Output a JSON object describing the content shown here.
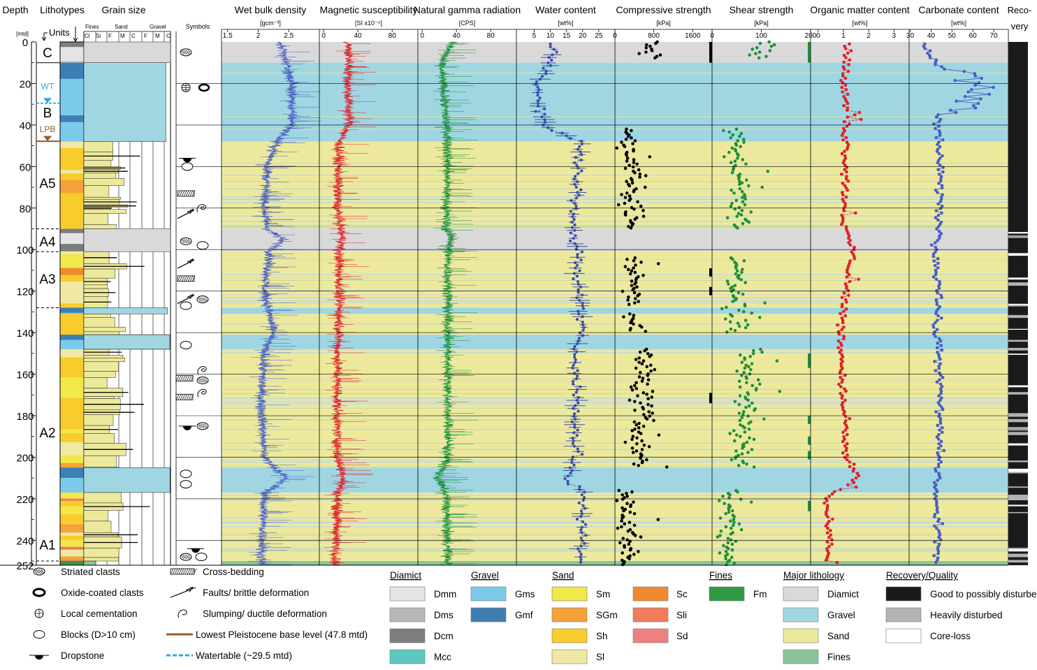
{
  "colors": {
    "diamict_band": "#d9d9d9",
    "gravel_band": "#9fd6e2",
    "sand_band": "#ede99c",
    "fines_band": "#8cc39a",
    "wet_bulk_density": "#4a5fc1",
    "magnetic_susceptibility": "#e0202a",
    "natural_gamma": "#1e8f3a",
    "water_content": "#3a4ea8",
    "compressive_strength": "#000000",
    "shear_strength": "#1e8f3a",
    "organic_matter": "#e0202a",
    "carbonate": "#4a5fc1",
    "watertable": "#2aa9e0",
    "pleistocene_base": "#9a5a2a",
    "Dmm": "#e4e4e4",
    "Dms": "#b7b7b7",
    "Dcm": "#7d7d7d",
    "Mcc": "#5ec8c0",
    "Gms": "#7ccbea",
    "Gmf": "#3d7fb3",
    "Sm": "#f2e84a",
    "SGm": "#f5a23a",
    "Sh": "#f7cc2c",
    "Sl": "#efe9a5",
    "Sc": "#ef8a2f",
    "Sli": "#f27b5b",
    "Sd": "#f08080",
    "Fm": "#2f9a45",
    "Good": "#1a1a1a",
    "Heavily": "#b3b3b3",
    "Core_loss": "#ffffff"
  },
  "header": {
    "depth": "Depth",
    "depth_unit": "[mtd]",
    "lithotypes": "Lithotypes",
    "units": "Units",
    "grain_size": "Grain size",
    "fines": "Fines",
    "sand": "Sand",
    "gravel": "Gravel",
    "cl": "Cl",
    "si": "Si",
    "f": "F",
    "m": "M",
    "c": "C",
    "symbols": "Symbols",
    "recovery_1": "Reco-",
    "recovery_2": "very"
  },
  "units": [
    {
      "label": "C",
      "depth": 5
    },
    {
      "label": "B",
      "depth": 34
    },
    {
      "label": "A5",
      "depth": 68
    },
    {
      "label": "A4",
      "depth": 96
    },
    {
      "label": "A3",
      "depth": 114
    },
    {
      "label": "A2",
      "depth": 188
    },
    {
      "label": "A1",
      "depth": 242
    }
  ],
  "markers": {
    "wt": "WT",
    "lpb": "LPB"
  },
  "chart_data": {
    "type": "line",
    "depth_axis": {
      "label": "Depth",
      "unit": "[mtd]",
      "range": [
        0,
        252
      ],
      "ticks": [
        0,
        20,
        40,
        60,
        80,
        100,
        120,
        140,
        160,
        180,
        200,
        220,
        240,
        252
      ]
    },
    "lithology_bands": [
      {
        "from": 0,
        "to": 10,
        "type": "Diamict"
      },
      {
        "from": 10,
        "to": 48,
        "type": "Gravel"
      },
      {
        "from": 48,
        "to": 90,
        "type": "Sand"
      },
      {
        "from": 90,
        "to": 101,
        "type": "Diamict"
      },
      {
        "from": 101,
        "to": 128,
        "type": "Sand"
      },
      {
        "from": 128,
        "to": 131,
        "type": "Gravel"
      },
      {
        "from": 131,
        "to": 141,
        "type": "Sand"
      },
      {
        "from": 141,
        "to": 148,
        "type": "Gravel"
      },
      {
        "from": 148,
        "to": 205,
        "type": "Sand"
      },
      {
        "from": 205,
        "to": 217,
        "type": "Gravel"
      },
      {
        "from": 217,
        "to": 250,
        "type": "Sand"
      },
      {
        "from": 250,
        "to": 252,
        "type": "Fines"
      }
    ],
    "panels": [
      {
        "name": "Wet bulk density",
        "unit": "[gcm⁻³]",
        "ticks": [
          "1.5",
          "2",
          "2.5"
        ],
        "tick_values": [
          1.5,
          2.0,
          2.5
        ],
        "range": [
          1.4,
          3.0
        ],
        "style": "dense",
        "profile": [
          [
            0,
            2.35
          ],
          [
            10,
            2.45
          ],
          [
            20,
            2.55
          ],
          [
            40,
            2.55
          ],
          [
            48,
            2.3
          ],
          [
            60,
            2.15
          ],
          [
            80,
            2.1
          ],
          [
            90,
            2.15
          ],
          [
            95,
            2.4
          ],
          [
            101,
            2.2
          ],
          [
            120,
            2.1
          ],
          [
            140,
            2.25
          ],
          [
            148,
            2.1
          ],
          [
            170,
            2.05
          ],
          [
            200,
            2.1
          ],
          [
            210,
            2.45
          ],
          [
            218,
            2.1
          ],
          [
            252,
            2.05
          ]
        ]
      },
      {
        "name": "Magnetic susceptibility",
        "unit": "[SI x10⁻⁵]",
        "ticks": [
          "0",
          "40",
          "80"
        ],
        "tick_values": [
          0,
          40,
          80
        ],
        "range": [
          -5,
          110
        ],
        "style": "dense",
        "profile": [
          [
            0,
            28
          ],
          [
            10,
            30
          ],
          [
            20,
            28
          ],
          [
            40,
            30
          ],
          [
            48,
            18
          ],
          [
            80,
            16
          ],
          [
            95,
            22
          ],
          [
            101,
            18
          ],
          [
            140,
            18
          ],
          [
            148,
            16
          ],
          [
            200,
            16
          ],
          [
            210,
            24
          ],
          [
            218,
            16
          ],
          [
            252,
            14
          ]
        ]
      },
      {
        "name": "Natural gamma radiation",
        "unit": "[CPS]",
        "ticks": [
          "0",
          "40",
          "80"
        ],
        "tick_values": [
          0,
          40,
          80
        ],
        "range": [
          -5,
          110
        ],
        "style": "dense",
        "profile": [
          [
            0,
            35
          ],
          [
            10,
            22
          ],
          [
            48,
            30
          ],
          [
            90,
            28
          ],
          [
            95,
            35
          ],
          [
            101,
            30
          ],
          [
            140,
            30
          ],
          [
            148,
            30
          ],
          [
            200,
            30
          ],
          [
            210,
            18
          ],
          [
            218,
            28
          ],
          [
            252,
            30
          ]
        ]
      },
      {
        "name": "Water content",
        "unit": "[wt%]",
        "ticks": [
          "5",
          "10",
          "15",
          "20",
          "25"
        ],
        "tick_values": [
          5,
          10,
          15,
          20,
          25
        ],
        "range": [
          -0.5,
          30
        ],
        "style": "errbar",
        "profile": [
          [
            0,
            11
          ],
          [
            10,
            10
          ],
          [
            20,
            6
          ],
          [
            30,
            7
          ],
          [
            40,
            8
          ],
          [
            48,
            19
          ],
          [
            80,
            18
          ],
          [
            95,
            17
          ],
          [
            101,
            18
          ],
          [
            140,
            20
          ],
          [
            148,
            18
          ],
          [
            200,
            18
          ],
          [
            210,
            15
          ],
          [
            218,
            20
          ],
          [
            252,
            20
          ]
        ]
      },
      {
        "name": "Compressive strength",
        "unit": "[kPa]",
        "ticks": [
          "0",
          "800",
          "1600"
        ],
        "tick_values": [
          0,
          800,
          1600
        ],
        "range": [
          0,
          2000
        ],
        "style": "dots",
        "profile": [
          [
            0,
            700
          ],
          [
            10,
            700
          ],
          [
            42,
            300
          ],
          [
            90,
            300
          ],
          [
            104,
            400
          ],
          [
            140,
            400
          ],
          [
            148,
            600
          ],
          [
            205,
            500
          ],
          [
            216,
            250
          ],
          [
            252,
            300
          ]
        ]
      },
      {
        "name": "Shear strength",
        "unit": "[kPa]",
        "ticks": [
          "0",
          "100",
          "200"
        ],
        "tick_values": [
          0,
          100,
          200
        ],
        "range": [
          0,
          200
        ],
        "style": "dots",
        "profile": [
          [
            0,
            100
          ],
          [
            10,
            100
          ],
          [
            42,
            50
          ],
          [
            90,
            60
          ],
          [
            104,
            50
          ],
          [
            140,
            45
          ],
          [
            148,
            80
          ],
          [
            205,
            55
          ],
          [
            216,
            30
          ],
          [
            252,
            40
          ]
        ]
      },
      {
        "name": "Organic matter content",
        "unit": "[wt%]",
        "ticks": [
          "0",
          "1",
          "2",
          "3"
        ],
        "tick_values": [
          0,
          1,
          2,
          3
        ],
        "range": [
          -0.3,
          3.6
        ],
        "style": "linedots",
        "profile": [
          [
            0,
            1.2
          ],
          [
            20,
            1.0
          ],
          [
            40,
            1.1
          ],
          [
            60,
            1.1
          ],
          [
            90,
            1.0
          ],
          [
            100,
            1.4
          ],
          [
            120,
            1.1
          ],
          [
            140,
            0.9
          ],
          [
            180,
            1.0
          ],
          [
            200,
            1.1
          ],
          [
            210,
            1.6
          ],
          [
            220,
            0.3
          ],
          [
            240,
            0.4
          ],
          [
            252,
            0.3
          ]
        ]
      },
      {
        "name": "Carbonate content",
        "unit": "[wt%]",
        "ticks": [
          "30",
          "40",
          "50",
          "60",
          "70"
        ],
        "tick_values": [
          30,
          40,
          50,
          60,
          70
        ],
        "range": [
          29.5,
          77
        ],
        "style": "linedots",
        "profile": [
          [
            0,
            36
          ],
          [
            10,
            42
          ],
          [
            20,
            52
          ],
          [
            30,
            48
          ],
          [
            40,
            42
          ],
          [
            48,
            44
          ],
          [
            90,
            44
          ],
          [
            100,
            42
          ],
          [
            120,
            44
          ],
          [
            140,
            42
          ],
          [
            148,
            44
          ],
          [
            200,
            44
          ],
          [
            220,
            42
          ],
          [
            240,
            44
          ],
          [
            252,
            42
          ]
        ]
      }
    ]
  },
  "legend": {
    "symbols": [
      {
        "label": "Striated clasts",
        "icon": "striated-clast-icon"
      },
      {
        "label": "Oxide-coated clasts",
        "icon": "oxide-clast-icon"
      },
      {
        "label": "Local cementation",
        "icon": "cementation-icon"
      },
      {
        "label": "Blocks (D>10 cm)",
        "icon": "block-icon"
      },
      {
        "label": "Dropstone",
        "icon": "dropstone-icon"
      }
    ],
    "structures": [
      {
        "label": "Cross-bedding",
        "icon": "cross-bedding-icon"
      },
      {
        "label": "Faults/ brittle deformation",
        "icon": "fault-icon"
      },
      {
        "label": "Slumping/ ductile deformation",
        "icon": "slump-icon"
      },
      {
        "label": "Lowest Pleistocene  base level (47.8 mtd)",
        "icon": "brown-line-icon"
      },
      {
        "label": "Watertable (~29.5 mtd)",
        "icon": "dashed-blue-line-icon"
      }
    ],
    "diamict_title": "Diamict",
    "diamict": [
      "Dmm",
      "Dms",
      "Dcm",
      "Mcc"
    ],
    "gravel_title": "Gravel",
    "gravel": [
      "Gms",
      "Gmf"
    ],
    "sand_title": "Sand",
    "sand_a": [
      "Sm",
      "SGm",
      "Sh",
      "Sl"
    ],
    "sand_b": [
      "Sc",
      "Sli",
      "Sd"
    ],
    "fines_title": "Fines",
    "fines": [
      "Fm"
    ],
    "major_title": "Major lithology",
    "major": [
      "Diamict",
      "Gravel",
      "Sand",
      "Fines"
    ],
    "recovery_title": "Recovery/Quality",
    "recovery": [
      "Good to possibly disturbed",
      "Heavily disturbed",
      "Core-loss"
    ]
  }
}
